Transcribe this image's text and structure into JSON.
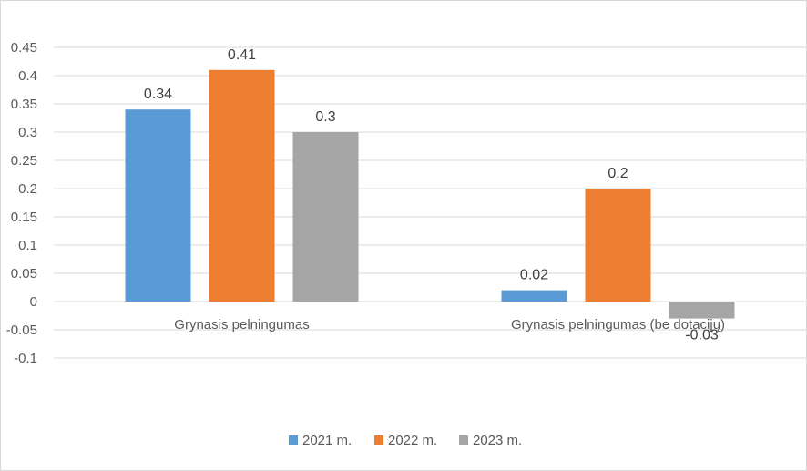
{
  "chart_data": {
    "type": "bar",
    "categories": [
      "Grynasis pelningumas",
      "Grynasis pelningumas (be dotacijų)"
    ],
    "series": [
      {
        "name": "2021 m.",
        "color": "#5b9bd5",
        "values": [
          0.34,
          0.02
        ]
      },
      {
        "name": "2022 m.",
        "color": "#ed7d31",
        "values": [
          0.41,
          0.2
        ]
      },
      {
        "name": "2023 m.",
        "color": "#a5a5a5",
        "values": [
          0.3,
          -0.03
        ]
      }
    ],
    "data_labels": [
      [
        "0.34",
        "0.02"
      ],
      [
        "0.41",
        "0.2"
      ],
      [
        "0.3",
        "-0.03"
      ]
    ],
    "ylim": [
      -0.1,
      0.45
    ],
    "yticks": [
      "0.45",
      "0.4",
      "0.35",
      "0.3",
      "0.25",
      "0.2",
      "0.15",
      "0.1",
      "0.05",
      "0",
      "-0.05",
      "-0.1"
    ],
    "ytick_values": [
      0.45,
      0.4,
      0.35,
      0.3,
      0.25,
      0.2,
      0.15,
      0.1,
      0.05,
      0,
      -0.05,
      -0.1
    ],
    "grid": true,
    "legend_position": "bottom",
    "gridline_color": "#d9d9d9"
  }
}
